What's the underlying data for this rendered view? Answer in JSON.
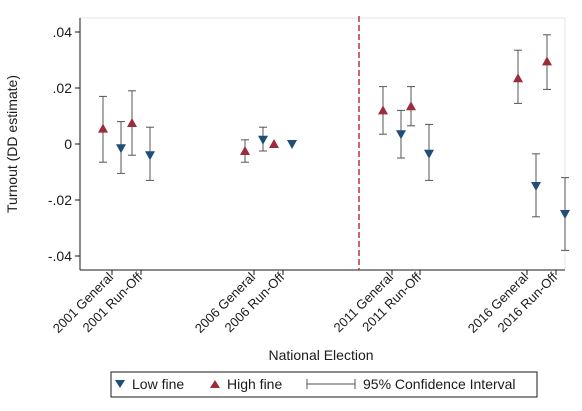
{
  "chart_data": {
    "type": "scatter",
    "xlabel": "National Election",
    "ylabel": "Turnout (DD estimate)",
    "ylim": [
      -0.045,
      0.045
    ],
    "yticks": [
      -0.04,
      -0.02,
      0,
      0.02,
      0.04
    ],
    "ytick_labels": [
      "-.04",
      "-.02",
      "0",
      ".02",
      ".04"
    ],
    "grid": false,
    "legend_position": "bottom",
    "colors": {
      "low_fine": "#1f4e79",
      "high_fine": "#9b2c3a",
      "ci": "#555555",
      "reference_line": "#c0304a"
    },
    "categories": [
      "2001 General",
      "2001 Run-Off",
      "2006 General",
      "2006 Run-Off",
      "2011 General",
      "2011 Run-Off",
      "2016 General",
      "2016 Run-Off"
    ],
    "reference_line_after": "2006 Run-Off",
    "series": [
      {
        "name": "High fine",
        "marker": "triangle-up",
        "values": [
          0.0055,
          0.0075,
          -0.0025,
          0.0,
          0.012,
          0.0135,
          0.0235,
          0.0295
        ],
        "ci_low": [
          -0.0065,
          -0.004,
          -0.0065,
          null,
          0.0035,
          0.0065,
          0.0145,
          0.0195
        ],
        "ci_high": [
          0.017,
          0.019,
          0.0015,
          null,
          0.0205,
          0.0205,
          0.0335,
          0.039
        ]
      },
      {
        "name": "Low fine",
        "marker": "triangle-down",
        "values": [
          -0.0015,
          -0.004,
          0.0015,
          0.0,
          0.0035,
          -0.0035,
          -0.015,
          -0.025
        ],
        "ci_low": [
          -0.0105,
          -0.013,
          -0.0025,
          null,
          -0.005,
          -0.013,
          -0.026,
          -0.038
        ],
        "ci_high": [
          0.008,
          0.006,
          0.006,
          null,
          0.012,
          0.007,
          -0.0035,
          -0.012
        ]
      }
    ],
    "legend": {
      "low_label": "Low fine",
      "high_label": "High fine",
      "ci_label": "95% Confidence Interval"
    }
  }
}
